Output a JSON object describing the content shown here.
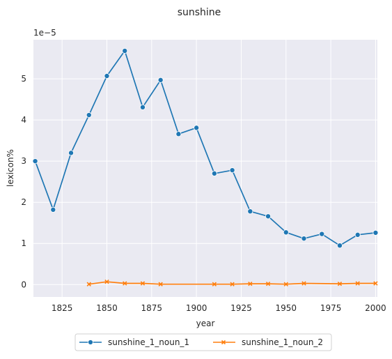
{
  "chart_data": {
    "type": "line",
    "title": "sunshine",
    "xlabel": "year",
    "ylabel": "lexicon%",
    "y_multiplier_label": "1e−5",
    "xlim": [
      1809,
      2001
    ],
    "ylim": [
      -0.3,
      5.95
    ],
    "y_unit_scale": 1e-05,
    "xticks": [
      1825,
      1850,
      1875,
      1900,
      1925,
      1950,
      1975,
      2000
    ],
    "xtick_labels": [
      "1825",
      "1850",
      "1875",
      "1900",
      "1925",
      "1950",
      "1975",
      "2000"
    ],
    "yticks": [
      0,
      1,
      2,
      3,
      4,
      5
    ],
    "ytick_labels": [
      "0",
      "1",
      "2",
      "3",
      "4",
      "5"
    ],
    "grid": true,
    "legend_position": "bottom-center",
    "series": [
      {
        "name": "sunshine_1_noun_1",
        "color": "#1f77b4",
        "marker": "circle",
        "x": [
          1810,
          1820,
          1830,
          1840,
          1850,
          1860,
          1870,
          1880,
          1890,
          1900,
          1910,
          1920,
          1930,
          1940,
          1950,
          1960,
          1970,
          1980,
          1990,
          2000
        ],
        "y": [
          3.0,
          1.82,
          3.2,
          4.12,
          5.07,
          5.68,
          4.31,
          4.97,
          3.66,
          3.81,
          2.7,
          2.78,
          1.78,
          1.66,
          1.27,
          1.12,
          1.23,
          0.95,
          1.21,
          1.26
        ]
      },
      {
        "name": "sunshine_1_noun_2",
        "color": "#ff7f0e",
        "marker": "x",
        "x": [
          1840,
          1850,
          1860,
          1870,
          1880,
          1910,
          1920,
          1930,
          1940,
          1950,
          1960,
          1980,
          1990,
          2000
        ],
        "y": [
          0.01,
          0.07,
          0.03,
          0.03,
          0.01,
          0.01,
          0.01,
          0.02,
          0.02,
          0.01,
          0.03,
          0.02,
          0.03,
          0.03
        ]
      }
    ]
  }
}
